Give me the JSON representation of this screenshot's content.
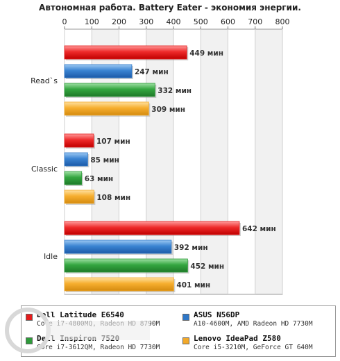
{
  "chart_data": {
    "type": "bar",
    "orientation": "horizontal",
    "title": "Автономная работа. Battery Eater - экономия энергии.",
    "categories": [
      "Read`s",
      "Classic",
      "Idle"
    ],
    "unit": "мин",
    "xlim": [
      0,
      800
    ],
    "xticks": [
      "0",
      "100",
      "200",
      "300",
      "400",
      "500",
      "600",
      "700",
      "800"
    ],
    "grid": true,
    "legend_position": "bottom",
    "series": [
      {
        "name": "Dell Latitude E6540",
        "subtitle": "Core i7-4800MQ, Radeon HD 8790M",
        "color": "#e41c1c",
        "values": [
          449,
          107,
          642
        ],
        "labels": [
          "449 мин",
          "107 мин",
          "642 мин"
        ]
      },
      {
        "name": "ASUS N56DP",
        "subtitle": "A10-4600M, AMD Radeon HD 7730M",
        "color": "#2f78c8",
        "values": [
          247,
          85,
          392
        ],
        "labels": [
          "247 мин",
          "85 мин",
          "392 мин"
        ]
      },
      {
        "name": "Dell Inspiron 7520",
        "subtitle": "Core i7-3612QM, Radeon HD 7730M",
        "color": "#2e9a3a",
        "values": [
          332,
          63,
          452
        ],
        "labels": [
          "332 мин",
          "63 мин",
          "452 мин"
        ]
      },
      {
        "name": "Lenovo IdeaPad Z580",
        "subtitle": "Core i5-3210M, GeForce GT 640M",
        "color": "#f2a92a",
        "values": [
          309,
          108,
          401
        ],
        "labels": [
          "309 мин",
          "108 мин",
          "401 мин"
        ]
      }
    ]
  }
}
